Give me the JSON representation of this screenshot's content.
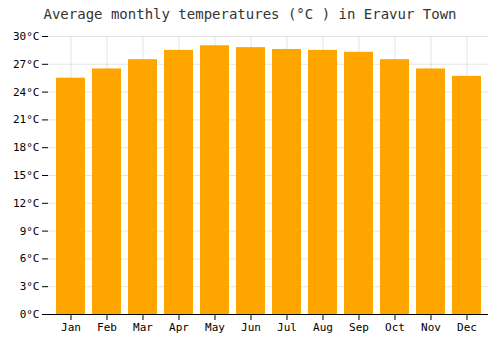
{
  "chart_data": {
    "type": "bar",
    "title": "Average monthly temperatures (°C ) in Eravur Town",
    "categories": [
      "Jan",
      "Feb",
      "Mar",
      "Apr",
      "May",
      "Jun",
      "Jul",
      "Aug",
      "Sep",
      "Oct",
      "Nov",
      "Dec"
    ],
    "values": [
      25.5,
      26.5,
      27.5,
      28.5,
      29.0,
      28.8,
      28.6,
      28.5,
      28.3,
      27.5,
      26.5,
      25.7
    ],
    "color": "#FFA500",
    "ylim": [
      0,
      30
    ],
    "yticks": [
      {
        "value": 0,
        "label": "0°C"
      },
      {
        "value": 3,
        "label": "3°C"
      },
      {
        "value": 6,
        "label": "6°C"
      },
      {
        "value": 9,
        "label": "9°C"
      },
      {
        "value": 12,
        "label": "12°C"
      },
      {
        "value": 15,
        "label": "15°C"
      },
      {
        "value": 18,
        "label": "18°C"
      },
      {
        "value": 21,
        "label": "21°C"
      },
      {
        "value": 24,
        "label": "24°C"
      },
      {
        "value": 27,
        "label": "27°C"
      },
      {
        "value": 30,
        "label": "30°C"
      }
    ],
    "grid": true
  }
}
